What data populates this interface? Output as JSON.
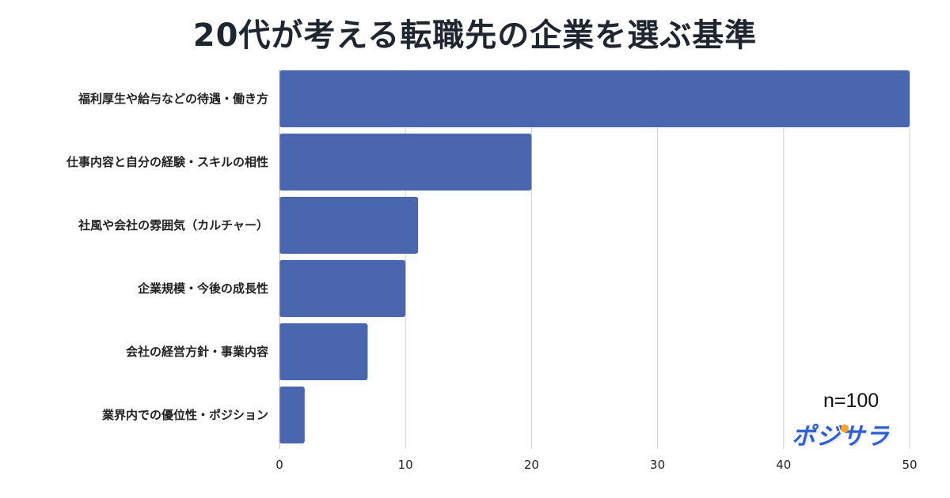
{
  "title": "20代が考える転職先の企業を選ぶ基準",
  "sample_size": "n=100",
  "logo_text": "ポジサラ",
  "colors": {
    "bar": "#4a66ae",
    "grid": "#cfcfcf",
    "title": "#1f2630",
    "logo": "#2f5fd0",
    "logo_accent": "#f5a623"
  },
  "chart_data": {
    "type": "bar",
    "orientation": "horizontal",
    "title": "20代が考える転職先の企業を選ぶ基準",
    "categories": [
      "福利厚生や給与などの待遇・働き方",
      "仕事内容と自分の経験・スキルの相性",
      "社風や会社の雰囲気（カルチャー）",
      "企業規模・今後の成長性",
      "会社の経営方針・事業内容",
      "業界内での優位性・ポジション"
    ],
    "values": [
      50,
      20,
      11,
      10,
      7,
      2
    ],
    "xlim": [
      0,
      50
    ],
    "xticks": [
      0,
      10,
      20,
      30,
      40,
      50
    ],
    "xlabel": "",
    "ylabel": "",
    "grid": "vertical"
  }
}
